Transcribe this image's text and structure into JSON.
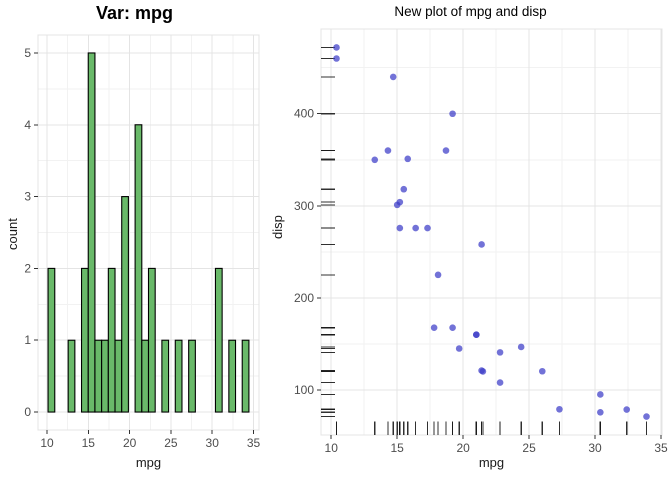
{
  "page": {
    "background": "#ffffff"
  },
  "left_plot": {
    "title": "Var: mpg",
    "xlabel": "mpg",
    "ylabel": "count"
  },
  "right_plot": {
    "title": "New plot of mpg and disp",
    "xlabel": "mpg",
    "ylabel": "disp"
  },
  "style": {
    "grid_major": "#E4E4E4",
    "grid_minor": "#F2F2F2",
    "panel_border": "#E4E4E4",
    "tick_mark": "#333333",
    "tick_label": "#4D4D4D",
    "axis_title": "#1A1A1A",
    "title_color": "#000000",
    "bar_fill": "#69B969",
    "bar_stroke": "#000000",
    "point_color": "rgba(60,60,200,0.72)",
    "rug_color": "#1A1A1A"
  },
  "chart_data": [
    {
      "type": "bar",
      "subtype": "histogram",
      "title": "Var: mpg",
      "xlabel": "mpg",
      "ylabel": "count",
      "xlim": [
        8.91,
        35.66
      ],
      "ylim": [
        -0.25,
        5.25
      ],
      "xticks": [
        10,
        15,
        20,
        25,
        30,
        35
      ],
      "yticks": [
        0,
        1,
        2,
        3,
        4,
        5
      ],
      "x_minor": [
        12.5,
        17.5,
        22.5,
        27.5,
        32.5
      ],
      "y_minor": [
        0.5,
        1.5,
        2.5,
        3.5,
        4.5
      ],
      "grid": true,
      "binwidth": 0.8103,
      "bins": [
        {
          "x0": 10.1293,
          "x1": 10.9397,
          "count": 2
        },
        {
          "x0": 12.5603,
          "x1": 13.3707,
          "count": 1
        },
        {
          "x0": 14.181,
          "x1": 14.9914,
          "count": 2
        },
        {
          "x0": 14.9914,
          "x1": 15.8017,
          "count": 5
        },
        {
          "x0": 15.8017,
          "x1": 16.6121,
          "count": 1
        },
        {
          "x0": 16.6121,
          "x1": 17.4224,
          "count": 1
        },
        {
          "x0": 17.4224,
          "x1": 18.2328,
          "count": 2
        },
        {
          "x0": 18.2328,
          "x1": 19.0431,
          "count": 1
        },
        {
          "x0": 19.0431,
          "x1": 19.8534,
          "count": 3
        },
        {
          "x0": 20.6638,
          "x1": 21.4741,
          "count": 4
        },
        {
          "x0": 21.4741,
          "x1": 22.2845,
          "count": 1
        },
        {
          "x0": 22.2845,
          "x1": 23.0948,
          "count": 2
        },
        {
          "x0": 23.9052,
          "x1": 24.7155,
          "count": 1
        },
        {
          "x0": 25.5259,
          "x1": 26.3362,
          "count": 1
        },
        {
          "x0": 27.1466,
          "x1": 27.9569,
          "count": 1
        },
        {
          "x0": 30.3879,
          "x1": 31.1983,
          "count": 2
        },
        {
          "x0": 32.0086,
          "x1": 32.819,
          "count": 1
        },
        {
          "x0": 33.6293,
          "x1": 34.4397,
          "count": 1
        }
      ]
    },
    {
      "type": "scatter",
      "title": "New plot of mpg and disp",
      "xlabel": "mpg",
      "ylabel": "disp",
      "xlim": [
        9.225,
        35.075
      ],
      "ylim": [
        51.05,
        492.05
      ],
      "xticks": [
        10,
        15,
        20,
        25,
        30,
        35
      ],
      "yticks": [
        100,
        200,
        300,
        400
      ],
      "x_minor": [
        12.5,
        17.5,
        22.5,
        27.5,
        32.5
      ],
      "y_minor": [
        150,
        250,
        350,
        450
      ],
      "grid": true,
      "rug_sides": "bottom-left",
      "points": [
        [
          21.0,
          160.0
        ],
        [
          21.0,
          160.0
        ],
        [
          22.8,
          108.0
        ],
        [
          21.4,
          258.0
        ],
        [
          18.7,
          360.0
        ],
        [
          18.1,
          225.0
        ],
        [
          14.3,
          360.0
        ],
        [
          24.4,
          146.7
        ],
        [
          22.8,
          140.8
        ],
        [
          19.2,
          167.6
        ],
        [
          17.8,
          167.6
        ],
        [
          16.4,
          275.8
        ],
        [
          17.3,
          275.8
        ],
        [
          15.2,
          275.8
        ],
        [
          10.4,
          472.0
        ],
        [
          10.4,
          460.0
        ],
        [
          14.7,
          440.0
        ],
        [
          32.4,
          78.7
        ],
        [
          30.4,
          75.7
        ],
        [
          33.9,
          71.1
        ],
        [
          21.5,
          120.1
        ],
        [
          15.5,
          318.0
        ],
        [
          15.2,
          304.0
        ],
        [
          13.3,
          350.0
        ],
        [
          19.2,
          400.0
        ],
        [
          27.3,
          79.0
        ],
        [
          26.0,
          120.3
        ],
        [
          30.4,
          95.1
        ],
        [
          15.8,
          351.0
        ],
        [
          19.7,
          145.0
        ],
        [
          15.0,
          301.0
        ],
        [
          21.4,
          121.0
        ]
      ]
    }
  ]
}
